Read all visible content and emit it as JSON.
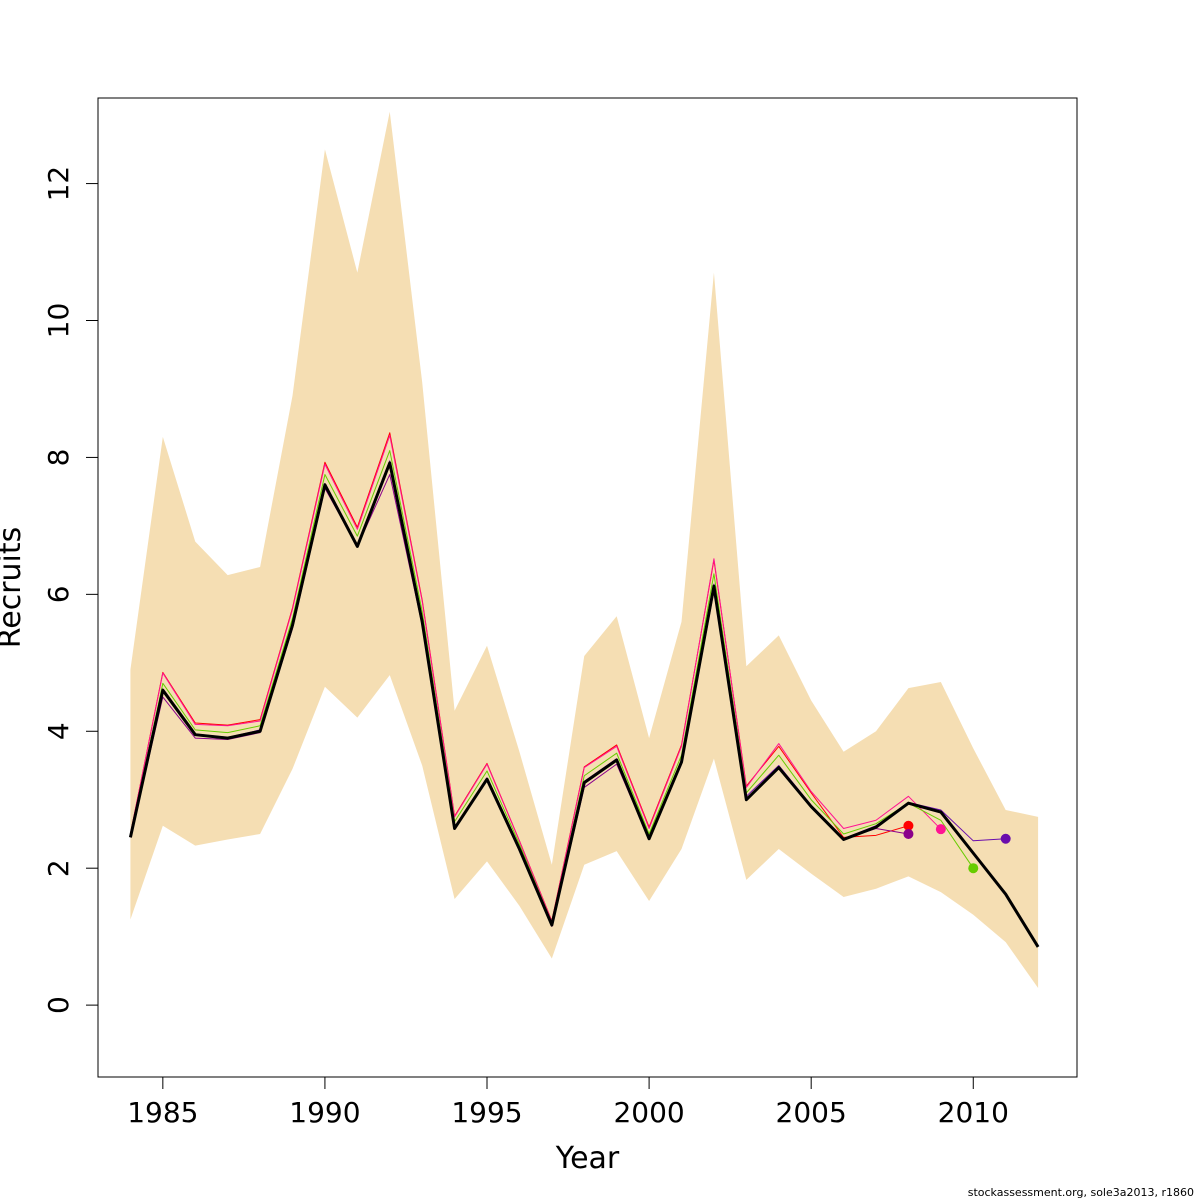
{
  "chart_data": {
    "type": "line",
    "title": "",
    "xlabel": "Year",
    "ylabel": "Recruits",
    "xlim": [
      1983,
      2013.2
    ],
    "ylim": [
      -1.05,
      13.25
    ],
    "x_ticks": [
      1985,
      1990,
      1995,
      2000,
      2005,
      2010
    ],
    "y_ticks": [
      0,
      2,
      4,
      6,
      8,
      10,
      12
    ],
    "grid": false,
    "legend": "none",
    "confidence_band": {
      "color": "#F5DEB3",
      "x": [
        1984,
        1985,
        1986,
        1987,
        1988,
        1989,
        1990,
        1991,
        1992,
        1993,
        1994,
        1995,
        1996,
        1997,
        1998,
        1999,
        2000,
        2001,
        2002,
        2003,
        2004,
        2005,
        2006,
        2007,
        2008,
        2009,
        2010,
        2011,
        2012
      ],
      "upper": [
        4.9,
        8.3,
        6.77,
        6.28,
        6.4,
        8.9,
        12.5,
        10.7,
        13.05,
        9.1,
        4.3,
        5.25,
        3.7,
        2.05,
        5.1,
        5.68,
        3.9,
        5.6,
        10.7,
        4.95,
        5.4,
        4.45,
        3.7,
        4.0,
        4.63,
        4.72,
        3.75,
        2.85,
        2.75
      ],
      "lower": [
        1.25,
        2.62,
        2.33,
        2.42,
        2.5,
        3.45,
        4.65,
        4.2,
        4.82,
        3.5,
        1.55,
        2.1,
        1.45,
        0.68,
        2.05,
        2.25,
        1.52,
        2.28,
        3.6,
        1.83,
        2.28,
        1.92,
        1.58,
        1.7,
        1.88,
        1.65,
        1.32,
        0.92,
        0.25
      ]
    },
    "series": [
      {
        "color": "#000000",
        "width": 3,
        "x": [
          1984,
          1985,
          1986,
          1987,
          1988,
          1989,
          1990,
          1991,
          1992,
          1993,
          1994,
          1995,
          1996,
          1997,
          1998,
          1999,
          2000,
          2001,
          2002,
          2003,
          2004,
          2005,
          2006,
          2007,
          2008,
          2009,
          2010,
          2011,
          2012
        ],
        "values": [
          2.45,
          4.6,
          3.95,
          3.9,
          4.0,
          5.55,
          7.6,
          6.7,
          7.92,
          5.6,
          2.58,
          3.3,
          2.28,
          1.17,
          3.25,
          3.58,
          2.43,
          3.55,
          6.12,
          3.0,
          3.47,
          2.9,
          2.42,
          2.6,
          2.95,
          2.82,
          2.22,
          1.62,
          0.85
        ]
      },
      {
        "color": "#FF0000",
        "width": 1,
        "x": [
          1984,
          1985,
          1986,
          1987,
          1988,
          1989,
          1990,
          1991,
          1992,
          1993,
          1994,
          1995,
          1996,
          1997,
          1998,
          1999,
          2000,
          2001,
          2002,
          2003,
          2004,
          2005,
          2006,
          2007,
          2008
        ],
        "values": [
          2.5,
          4.86,
          4.12,
          4.09,
          4.17,
          5.8,
          7.93,
          6.98,
          8.36,
          5.92,
          2.76,
          3.53,
          2.4,
          1.23,
          3.48,
          3.8,
          2.6,
          3.8,
          6.5,
          3.2,
          3.78,
          3.1,
          2.45,
          2.48,
          2.62
        ],
        "final_point": [
          2008,
          2.62
        ]
      },
      {
        "color": "#FF1493",
        "width": 1,
        "x": [
          1984,
          1985,
          1986,
          1987,
          1988,
          1989,
          1990,
          1991,
          1992,
          1993,
          1994,
          1995,
          1996,
          1997,
          1998,
          1999,
          2000,
          2001,
          2002,
          2003,
          2004,
          2005,
          2006,
          2007,
          2008,
          2009
        ],
        "values": [
          2.5,
          4.85,
          4.1,
          4.08,
          4.15,
          5.78,
          7.9,
          6.95,
          8.32,
          5.9,
          2.75,
          3.52,
          2.4,
          1.22,
          3.47,
          3.78,
          2.58,
          3.78,
          6.52,
          3.18,
          3.82,
          3.12,
          2.58,
          2.7,
          3.05,
          2.57
        ],
        "final_point": [
          2009,
          2.57
        ]
      },
      {
        "color": "#66CC00",
        "width": 1,
        "x": [
          1984,
          1985,
          1986,
          1987,
          1988,
          1989,
          1990,
          1991,
          1992,
          1993,
          1994,
          1995,
          1996,
          1997,
          1998,
          1999,
          2000,
          2001,
          2002,
          2003,
          2004,
          2005,
          2006,
          2007,
          2008,
          2009,
          2010
        ],
        "values": [
          2.48,
          4.7,
          4.02,
          3.98,
          4.08,
          5.65,
          7.75,
          6.85,
          8.1,
          5.75,
          2.68,
          3.42,
          2.35,
          1.2,
          3.35,
          3.68,
          2.5,
          3.65,
          6.3,
          3.1,
          3.65,
          3.0,
          2.5,
          2.65,
          2.95,
          2.7,
          2.0
        ],
        "final_point": [
          2010,
          2.0
        ]
      },
      {
        "color": "#8B008B",
        "width": 1,
        "x": [
          1984,
          1985,
          1986,
          1987,
          1988,
          1989,
          1990,
          1991,
          1992,
          1993,
          1994,
          1995,
          1996,
          1997,
          1998,
          1999,
          2000,
          2001,
          2002,
          2003,
          2004,
          2005,
          2006,
          2007,
          2008
        ],
        "values": [
          2.45,
          4.5,
          3.9,
          3.88,
          3.98,
          5.5,
          7.55,
          6.7,
          7.75,
          5.55,
          2.6,
          3.28,
          2.25,
          1.15,
          3.18,
          3.52,
          2.42,
          3.52,
          6.05,
          3.02,
          3.45,
          2.9,
          2.42,
          2.58,
          2.5
        ],
        "final_point": [
          2008,
          2.5
        ]
      },
      {
        "color": "#6A0DAD",
        "width": 1,
        "x": [
          1984,
          1985,
          1986,
          1987,
          1988,
          1989,
          1990,
          1991,
          1992,
          1993,
          1994,
          1995,
          1996,
          1997,
          1998,
          1999,
          2000,
          2001,
          2002,
          2003,
          2004,
          2005,
          2006,
          2007,
          2008,
          2009,
          2010,
          2011
        ],
        "values": [
          2.46,
          4.62,
          3.96,
          3.91,
          4.02,
          5.57,
          7.62,
          6.72,
          7.95,
          5.62,
          2.6,
          3.32,
          2.3,
          1.18,
          3.27,
          3.6,
          2.45,
          3.57,
          6.15,
          3.05,
          3.5,
          2.92,
          2.43,
          2.62,
          2.96,
          2.85,
          2.4,
          2.43
        ],
        "final_point": [
          2011,
          2.43
        ]
      }
    ]
  },
  "footer_text": "stockassessment.org, sole3a2013, r1860"
}
